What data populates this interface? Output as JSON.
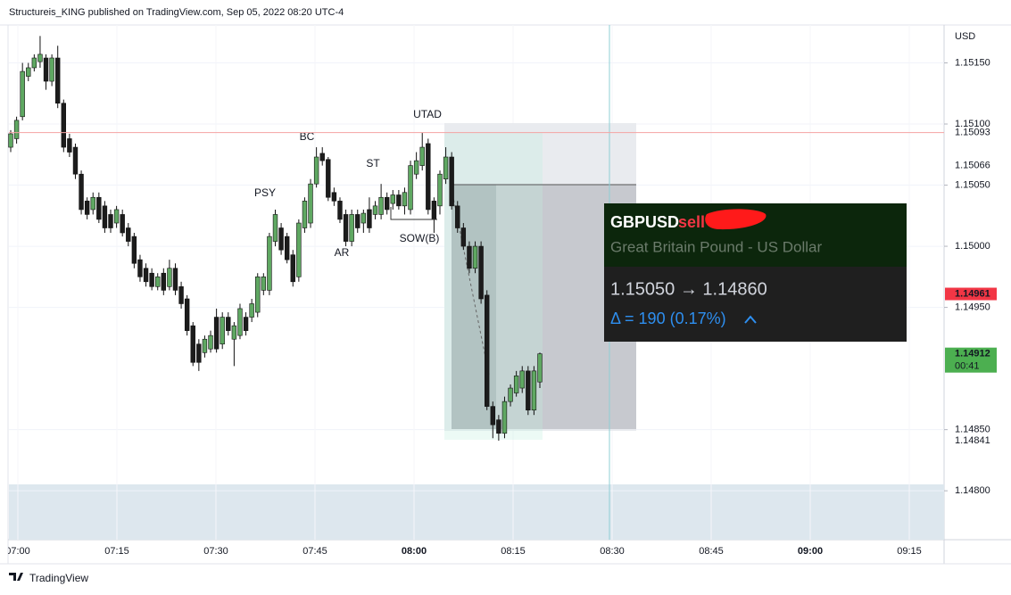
{
  "header": "Structureis_KING published on TradingView.com, Sep 05, 2022 08:20 UTC-4",
  "footer": "TradingView",
  "chart_data": {
    "type": "candlestick",
    "currency": "USD",
    "up_color": "#5fa862",
    "down_color": "#1c1c1c",
    "ylim": [
      1.1476,
      1.15181
    ],
    "yticks": [
      {
        "value": 1.1515,
        "label": "1.15150"
      },
      {
        "value": 1.151,
        "label": "1.15100"
      },
      {
        "value": 1.1505,
        "label": "1.15050"
      },
      {
        "value": 1.15,
        "label": "1.15000"
      },
      {
        "value": 1.1495,
        "label": "1.14950"
      },
      {
        "value": 1.1485,
        "label": "1.14850"
      },
      {
        "value": 1.148,
        "label": "1.14800"
      }
    ],
    "xtick_labels": [
      "07:00",
      "07:15",
      "07:30",
      "07:45",
      "08:00",
      "08:15",
      "08:30",
      "08:45",
      "09:00",
      "09:15"
    ],
    "open": [
      1.15081,
      1.15088,
      1.15106,
      1.15139,
      1.15146,
      1.15151,
      1.15154,
      1.15135,
      1.15154,
      1.15117,
      1.15088,
      1.15081,
      1.15059,
      1.15037,
      1.1503,
      1.1504,
      1.15033,
      1.15026,
      1.15019,
      1.15026,
      1.15015,
      1.15008,
      1.14989,
      1.14982,
      1.14978,
      1.14967,
      1.14978,
      1.14967,
      1.14982,
      1.14967,
      1.14957,
      1.14935,
      1.1492,
      1.14913,
      1.14916,
      1.14942,
      1.1492,
      1.14942,
      1.14924,
      1.14927,
      1.14942,
      1.14942,
      1.14946,
      1.14964,
      1.14964,
      1.15004,
      1.15015,
      1.15008,
      1.14993,
      1.14975,
      1.15015,
      1.15019,
      1.15051,
      1.15076,
      1.15071,
      1.15044,
      1.15037,
      1.15026,
      1.15004,
      1.15026,
      1.15019,
      1.1503,
      1.15026,
      1.15026,
      1.1504,
      1.15035,
      1.15042,
      1.15033,
      1.1503,
      1.15059,
      1.15066,
      1.15084,
      1.15037,
      1.15033,
      1.15055,
      1.15073,
      1.15033,
      1.15015,
      1.15,
      1.14982,
      1.15,
      1.1496,
      1.14869,
      1.14858,
      1.14847,
      1.14873,
      1.1488,
      1.14884,
      1.14898,
      1.14866,
      1.14889
    ],
    "high": [
      1.15095,
      1.15106,
      1.1515,
      1.1515,
      1.15157,
      1.15172,
      1.15157,
      1.15157,
      1.15164,
      1.1512,
      1.15092,
      1.15084,
      1.15062,
      1.1504,
      1.15044,
      1.15044,
      1.15037,
      1.1503,
      1.15033,
      1.1503,
      1.15019,
      1.15011,
      1.14993,
      1.14986,
      1.14982,
      1.14978,
      1.14982,
      1.14989,
      1.14986,
      1.14971,
      1.1496,
      1.14938,
      1.14924,
      1.14927,
      1.14931,
      1.14949,
      1.14946,
      1.14946,
      1.14938,
      1.14953,
      1.14946,
      1.14957,
      1.14978,
      1.14978,
      1.15011,
      1.1503,
      1.15019,
      1.15011,
      1.14997,
      1.15022,
      1.1504,
      1.15055,
      1.15081,
      1.15081,
      1.15073,
      1.15048,
      1.1504,
      1.1503,
      1.1503,
      1.1503,
      1.1503,
      1.1504,
      1.15037,
      1.15051,
      1.15044,
      1.15046,
      1.15046,
      1.15048,
      1.1507,
      1.15077,
      1.15093,
      1.15088,
      1.1504,
      1.15062,
      1.15081,
      1.15077,
      1.15037,
      1.15019,
      1.15004,
      1.15004,
      1.15004,
      1.14964,
      1.14873,
      1.14862,
      1.14877,
      1.14887,
      1.14898,
      1.14902,
      1.14902,
      1.14902,
      1.14913
    ],
    "low": [
      1.15077,
      1.15084,
      1.15103,
      1.15135,
      1.15143,
      1.15146,
      1.15128,
      1.15131,
      1.15113,
      1.15077,
      1.15073,
      1.15055,
      1.15026,
      1.15022,
      1.15026,
      1.15019,
      1.15011,
      1.15011,
      1.15015,
      1.15008,
      1.15,
      1.14982,
      1.14971,
      1.14967,
      1.14964,
      1.14964,
      1.1496,
      1.14964,
      1.1496,
      1.14949,
      1.14927,
      1.14902,
      1.14898,
      1.14909,
      1.14913,
      1.14913,
      1.14916,
      1.14927,
      1.14902,
      1.14924,
      1.14927,
      1.14938,
      1.14942,
      1.1496,
      1.1496,
      1.15,
      1.14993,
      1.14986,
      1.14967,
      1.14971,
      1.15011,
      1.15015,
      1.15048,
      1.15066,
      1.15037,
      1.15033,
      1.15019,
      1.15,
      1.15,
      1.15011,
      1.15011,
      1.15011,
      1.15022,
      1.15022,
      1.15026,
      1.1503,
      1.1503,
      1.15026,
      1.15026,
      1.15055,
      1.15062,
      1.15026,
      1.15011,
      1.15026,
      1.15051,
      1.1503,
      1.15011,
      1.14997,
      1.14978,
      1.14978,
      1.14953,
      1.14866,
      1.14843,
      1.14841,
      1.14843,
      1.14869,
      1.14877,
      1.1488,
      1.14862,
      1.14862,
      1.14884
    ],
    "close": [
      1.15092,
      1.15103,
      1.15143,
      1.15146,
      1.15154,
      1.15157,
      1.15135,
      1.15154,
      1.15117,
      1.15081,
      1.15077,
      1.15059,
      1.1503,
      1.15026,
      1.1504,
      1.15022,
      1.15015,
      1.15015,
      1.1503,
      1.15011,
      1.15004,
      1.14986,
      1.14975,
      1.14971,
      1.14967,
      1.14975,
      1.14964,
      1.14982,
      1.14964,
      1.14953,
      1.14931,
      1.14905,
      1.14905,
      1.14924,
      1.14927,
      1.14916,
      1.14942,
      1.14931,
      1.14935,
      1.14949,
      1.14931,
      1.14953,
      1.14975,
      1.14975,
      1.15008,
      1.15026,
      1.14997,
      1.14989,
      1.14971,
      1.15019,
      1.15037,
      1.15051,
      1.15073,
      1.1507,
      1.1504,
      1.15037,
      1.15022,
      1.15004,
      1.15026,
      1.15015,
      1.15027,
      1.15015,
      1.15033,
      1.1504,
      1.1503,
      1.15042,
      1.15033,
      1.15044,
      1.15066,
      1.1507,
      1.15081,
      1.1503,
      1.15022,
      1.15059,
      1.15073,
      1.15033,
      1.15015,
      1.15,
      1.14982,
      1.15,
      1.14957,
      1.14869,
      1.14854,
      1.14847,
      1.14873,
      1.14884,
      1.14894,
      1.14898,
      1.14866,
      1.14898,
      1.14912
    ],
    "horizontal_line": {
      "value": 1.15093,
      "label": "1.15093",
      "color": "#f4a3a3"
    },
    "axis_markers": [
      {
        "value": 1.15066,
        "label": "1.15066"
      },
      {
        "value": 1.14961,
        "label": "1.14961",
        "color": "#f23645"
      },
      {
        "value": 1.14912,
        "label": "1.14912",
        "sublabel": "00:41",
        "color": "#4caf50"
      },
      {
        "value": 1.14841,
        "label": "1.14841"
      }
    ],
    "annotations": [
      "PSY",
      "BC",
      "ST",
      "UTAD",
      "AR",
      "SOW(B)"
    ],
    "info_box": {
      "symbol": "GBPUSD",
      "side": "sell",
      "description": "Great Britain Pound - US Dollar",
      "prices": "1.15050 → 1.14860",
      "delta": "Δ = 190 (0.17%)"
    }
  }
}
